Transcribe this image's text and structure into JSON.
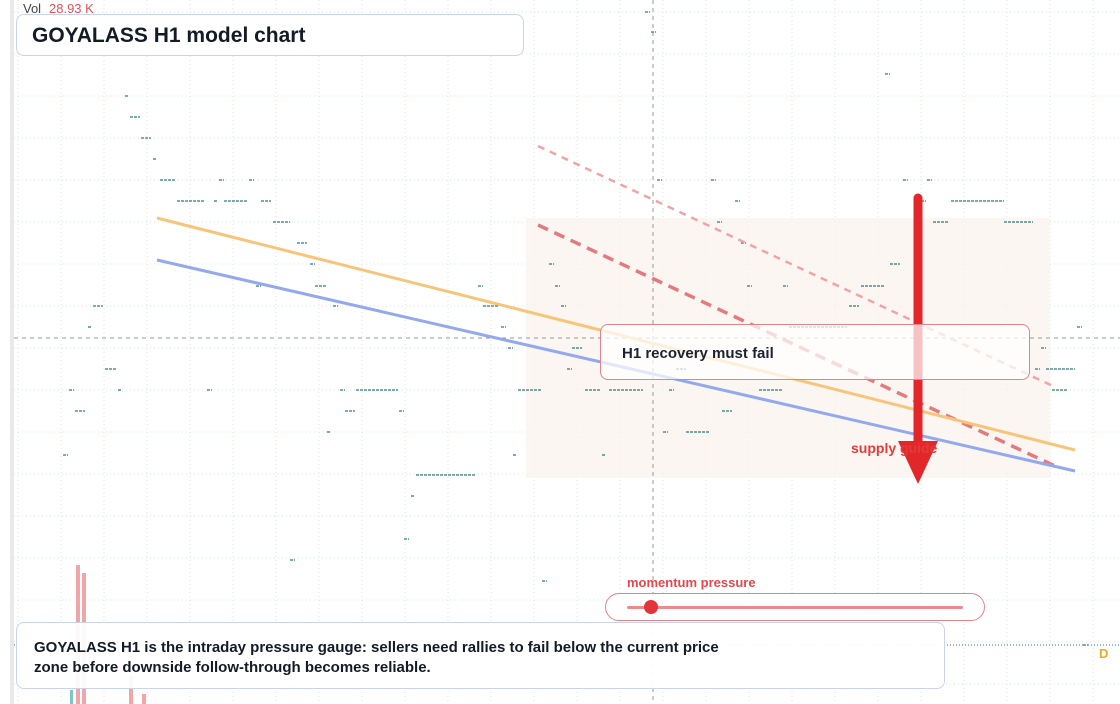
{
  "title": "GOYALASS H1 model chart",
  "volume": {
    "label": "Vol",
    "value": "28.93 K"
  },
  "callout": "H1 recovery must fail",
  "arrow_label": "supply guide",
  "gauge": {
    "label": "momentum pressure",
    "level": 0.07
  },
  "note": "GOYALASS H1 is the intraday pressure gauge: sellers need rallies to fail below the current price zone before downside follow-through becomes reliable.",
  "badge": "D",
  "colors": {
    "orange_line": "#f7c57a",
    "blue_line": "#93a9ee",
    "red_dash": "#e57a7e",
    "arrow": "#e3262a",
    "ticks": "#2f7a7a",
    "volume_bars": "#f0a6a8",
    "volume_teal": "#7fc6c2"
  },
  "chart_data": {
    "type": "line",
    "title": "GOYALASS H1 model chart",
    "series": [
      {
        "color": "orange",
        "y": [
          218,
          450
        ]
      },
      {
        "color": "blue",
        "y": [
          260,
          471
        ]
      }
    ],
    "grid": true,
    "annotations": [
      "H1 recovery must fail",
      "supply guide",
      "momentum pressure"
    ]
  }
}
